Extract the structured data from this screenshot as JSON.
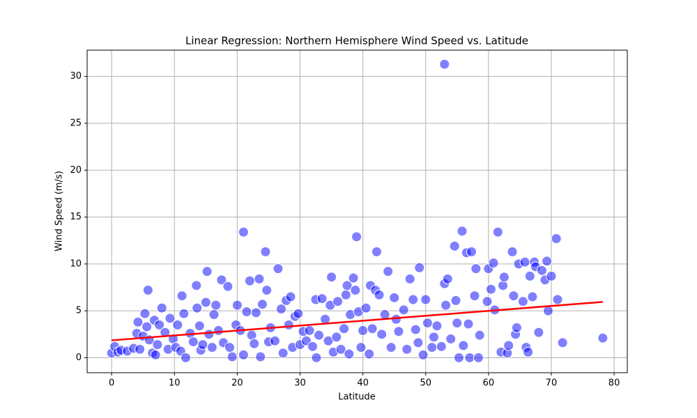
{
  "chart_data": {
    "type": "scatter",
    "title": "Linear Regression: Northern Hemisphere Wind Speed vs. Latitude",
    "x_label": "Latitude",
    "y_label": "Wind Speed (m/s)",
    "xlim": [
      -3.9,
      82.1
    ],
    "ylim": [
      -1.6,
      32.8
    ],
    "xticks": [
      0,
      10,
      20,
      30,
      40,
      50,
      60,
      70,
      80
    ],
    "yticks": [
      0,
      5,
      10,
      15,
      20,
      25,
      30
    ],
    "grid": true,
    "series": [
      {
        "type": "scatter",
        "color": "#0000ff",
        "x": [
          0,
          0.5,
          1,
          1.5,
          2.5,
          3.5,
          4,
          4.2,
          4.5,
          5,
          5.3,
          5.6,
          5.8,
          6,
          6.5,
          6.8,
          7,
          7.3,
          7.6,
          8,
          8.5,
          9,
          9.3,
          9.8,
          10.2,
          10.5,
          11,
          11.2,
          11.5,
          11.8,
          12.5,
          13,
          13.5,
          13.6,
          14,
          14.2,
          14.5,
          15,
          15.2,
          15.5,
          16,
          16.3,
          16.6,
          17,
          17.5,
          17.8,
          18.5,
          18.8,
          19.2,
          19.8,
          20,
          20.5,
          21,
          21,
          21.5,
          22,
          22.3,
          22.7,
          23,
          23.5,
          23.7,
          24,
          24.5,
          24.7,
          25,
          25.3,
          26,
          26.5,
          27,
          27.3,
          27.8,
          28.2,
          28.5,
          28.8,
          29.2,
          29.7,
          30,
          30.5,
          31,
          31.5,
          32,
          32.5,
          32.6,
          33,
          33.5,
          34,
          34.5,
          34.8,
          35,
          35.3,
          35.8,
          36,
          36.5,
          37,
          37.3,
          37.5,
          37.8,
          38,
          38.5,
          38.8,
          39,
          39.3,
          39.7,
          40,
          40.5,
          41,
          41.2,
          41.5,
          42,
          42.2,
          42.6,
          43,
          43.5,
          44,
          44.5,
          45,
          45.3,
          45.7,
          46.5,
          47,
          47.5,
          48,
          48.4,
          48.8,
          49,
          49.6,
          50,
          50.3,
          51,
          51.3,
          51.8,
          52.5,
          53,
          53,
          53.2,
          53.5,
          54,
          54.6,
          54.8,
          55,
          55.3,
          55.8,
          56,
          56.5,
          56.8,
          57,
          57.3,
          57.8,
          58,
          58.4,
          58.6,
          59.8,
          60,
          60.4,
          60.8,
          61,
          61.5,
          62,
          62.3,
          62.5,
          63,
          63.2,
          63.8,
          64,
          64.3,
          64.5,
          64.8,
          65.5,
          65.8,
          66,
          66.3,
          66.6,
          67,
          67.3,
          67.5,
          68,
          68.5,
          69,
          69.3,
          69.5,
          70,
          70.8,
          71,
          71.8,
          78.2
        ],
        "values": [
          0.5,
          1.2,
          0.6,
          0.8,
          0.7,
          1.0,
          2.6,
          3.8,
          0.9,
          2.3,
          4.7,
          3.3,
          7.2,
          1.9,
          0.5,
          4.0,
          0.3,
          1.4,
          3.5,
          5.3,
          2.7,
          0.9,
          4.2,
          2.0,
          1.1,
          3.5,
          0.7,
          6.6,
          4.7,
          0.0,
          2.6,
          1.7,
          7.7,
          5.3,
          3.4,
          0.8,
          1.4,
          5.9,
          9.2,
          2.5,
          1.1,
          4.6,
          5.6,
          2.9,
          8.3,
          1.6,
          7.6,
          1.1,
          0.1,
          3.5,
          5.6,
          2.9,
          13.4,
          0.3,
          4.9,
          8.2,
          2.4,
          1.5,
          4.8,
          8.4,
          0.1,
          5.7,
          11.3,
          7.2,
          1.7,
          3.2,
          1.8,
          9.5,
          5.2,
          0.5,
          6.1,
          3.5,
          6.5,
          1.1,
          4.4,
          4.7,
          1.4,
          2.8,
          1.8,
          2.9,
          1.2,
          6.2,
          0.0,
          2.4,
          6.3,
          4.1,
          1.8,
          5.6,
          8.6,
          0.6,
          2.2,
          6.0,
          0.9,
          3.1,
          6.7,
          7.7,
          0.4,
          4.6,
          8.5,
          7.2,
          12.9,
          4.9,
          1.1,
          2.9,
          5.3,
          0.4,
          7.7,
          3.1,
          7.2,
          11.3,
          6.7,
          2.5,
          4.6,
          9.2,
          1.1,
          6.4,
          4.1,
          2.8,
          5.1,
          0.9,
          8.4,
          6.2,
          3.0,
          1.6,
          9.6,
          0.3,
          6.2,
          3.7,
          1.1,
          2.2,
          3.4,
          1.2,
          31.3,
          7.9,
          5.6,
          8.4,
          2.0,
          11.9,
          6.1,
          3.7,
          0.0,
          13.5,
          1.3,
          11.2,
          3.6,
          0.0,
          11.3,
          6.6,
          9.5,
          0.0,
          2.4,
          6.0,
          9.5,
          7.3,
          10.1,
          5.1,
          13.4,
          0.6,
          7.7,
          8.6,
          0.5,
          1.3,
          11.3,
          6.6,
          2.5,
          3.2,
          10.0,
          6.0,
          10.2,
          1.1,
          0.6,
          8.7,
          6.5,
          10.2,
          9.7,
          2.7,
          9.3,
          8.3,
          10.3,
          5.0,
          8.7,
          12.7,
          6.2,
          1.6,
          2.1
        ]
      },
      {
        "type": "line",
        "color": "#ff0000",
        "x": [
          0,
          78.2
        ],
        "values": [
          1.85,
          5.95
        ]
      }
    ]
  }
}
